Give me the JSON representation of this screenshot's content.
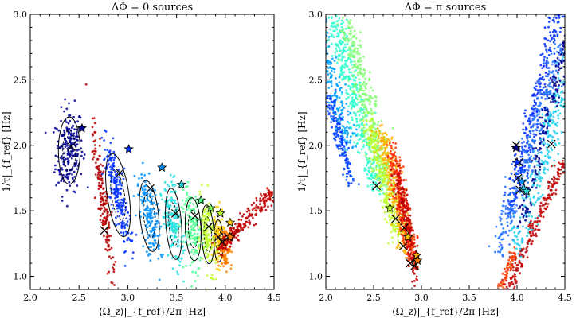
{
  "figure": {
    "description_free": true
  },
  "chart_data": [
    {
      "type": "scatter",
      "title": "ΔΦ = 0 sources",
      "xlabel": "⟨Ω_z⟩|_{f_ref}/2π [Hz]",
      "ylabel": "1/τ|_{f_ref} [Hz]",
      "xlim": [
        2.0,
        4.5
      ],
      "ylim": [
        0.9,
        3.0
      ],
      "xticks": [
        2.0,
        2.5,
        3.0,
        3.5,
        4.0,
        4.5
      ],
      "yticks": [
        1.0,
        1.5,
        2.0,
        2.5,
        3.0
      ],
      "xtick_labels": [
        "2.0",
        "2.5",
        "3.0",
        "3.5",
        "4.0",
        "4.5"
      ],
      "ytick_labels": [
        "1.0",
        "1.5",
        "2.0",
        "2.5",
        "3.0"
      ],
      "clusters": [
        {
          "color": "#00008f",
          "cx": 2.4,
          "cy": 1.96,
          "sx": 0.07,
          "sy": 0.16,
          "tilt": 0.0,
          "n": 220,
          "contour": true
        },
        {
          "color": "#b30000",
          "cx": 2.75,
          "cy": 1.55,
          "sx": 0.03,
          "sy": 0.28,
          "tilt": 2.6,
          "n": 180,
          "contour": false
        },
        {
          "color": "#0030ff",
          "cx": 2.9,
          "cy": 1.62,
          "sx": 0.07,
          "sy": 0.2,
          "tilt": 2.1,
          "n": 220,
          "contour": true
        },
        {
          "color": "#0090ff",
          "cx": 3.22,
          "cy": 1.46,
          "sx": 0.06,
          "sy": 0.17,
          "tilt": 2.4,
          "n": 180,
          "contour": true
        },
        {
          "color": "#20e0e0",
          "cx": 3.47,
          "cy": 1.4,
          "sx": 0.05,
          "sy": 0.17,
          "tilt": 2.6,
          "n": 170,
          "contour": true
        },
        {
          "color": "#50ff90",
          "cx": 3.67,
          "cy": 1.36,
          "sx": 0.05,
          "sy": 0.15,
          "tilt": 2.8,
          "n": 160,
          "contour": true
        },
        {
          "color": "#c0ff30",
          "cx": 3.82,
          "cy": 1.32,
          "sx": 0.04,
          "sy": 0.14,
          "tilt": 2.8,
          "n": 150,
          "contour": true
        },
        {
          "color": "#ffd000",
          "cx": 3.93,
          "cy": 1.27,
          "sx": 0.03,
          "sy": 0.1,
          "tilt": 3.0,
          "n": 120,
          "contour": true
        },
        {
          "color": "#ff8000",
          "cx": 4.0,
          "cy": 1.22,
          "sx": 0.03,
          "sy": 0.08,
          "tilt": 3.0,
          "n": 100,
          "contour": false
        },
        {
          "color": "#c00000",
          "cx": 4.22,
          "cy": 1.43,
          "sx": 0.2,
          "sy": 0.2,
          "tilt": 1.05,
          "n": 220,
          "line": true,
          "dx": 0.55,
          "dy": 0.45,
          "spread": 0.03
        }
      ],
      "crosses": [
        [
          2.42,
          1.99
        ],
        [
          2.76,
          1.35
        ],
        [
          2.92,
          1.79
        ],
        [
          3.23,
          1.67
        ],
        [
          3.49,
          1.48
        ],
        [
          3.69,
          1.46
        ],
        [
          3.83,
          1.38
        ],
        [
          3.93,
          1.3
        ],
        [
          3.97,
          1.26
        ],
        [
          4.03,
          1.3
        ]
      ],
      "stars": [
        {
          "x": 2.53,
          "y": 2.13,
          "color": "#00008f"
        },
        {
          "x": 3.01,
          "y": 1.97,
          "color": "#0030ff"
        },
        {
          "x": 3.35,
          "y": 1.83,
          "color": "#0090ff"
        },
        {
          "x": 3.55,
          "y": 1.7,
          "color": "#20e0e0"
        },
        {
          "x": 3.75,
          "y": 1.58,
          "color": "#50ff90"
        },
        {
          "x": 3.85,
          "y": 1.52,
          "color": "#80ff60"
        },
        {
          "x": 3.95,
          "y": 1.48,
          "color": "#c0ff30"
        },
        {
          "x": 4.05,
          "y": 1.41,
          "color": "#ffd000"
        },
        {
          "x": 4.05,
          "y": 1.3,
          "color": "#ff8000"
        }
      ]
    },
    {
      "type": "scatter",
      "title": "ΔΦ = π sources",
      "xlabel": "⟨Ω_z⟩|_{f_ref}/2π [Hz]",
      "ylabel": "1/τ|_{f_ref} [Hz]",
      "xlim": [
        2.0,
        4.5
      ],
      "ylim": [
        0.9,
        3.0
      ],
      "xticks": [
        2.0,
        2.5,
        3.0,
        3.5,
        4.0,
        4.5
      ],
      "yticks": [
        1.0,
        1.5,
        2.0,
        2.5,
        3.0
      ],
      "xtick_labels": [
        "2.0",
        "2.5",
        "3.0",
        "3.5",
        "4.0",
        "4.5"
      ],
      "ytick_labels": [
        "1.0",
        "1.5",
        "2.0",
        "2.5",
        "3.0"
      ],
      "clusters": [
        {
          "color": "#30ffd0",
          "line": true,
          "cx": 2.3,
          "cy": 2.35,
          "dx": 0.45,
          "dy": -1.3,
          "spread": 0.05,
          "n": 400
        },
        {
          "color": "#80ff70",
          "line": true,
          "cx": 2.45,
          "cy": 2.25,
          "dx": 0.45,
          "dy": -1.3,
          "spread": 0.05,
          "n": 350
        },
        {
          "color": "#c0ff30",
          "line": true,
          "cx": 2.6,
          "cy": 1.75,
          "dx": 0.3,
          "dy": -0.9,
          "spread": 0.04,
          "n": 250
        },
        {
          "color": "#ffb000",
          "line": true,
          "cx": 2.72,
          "cy": 1.65,
          "dx": 0.28,
          "dy": -0.9,
          "spread": 0.04,
          "n": 280
        },
        {
          "color": "#ff3000",
          "line": true,
          "cx": 2.8,
          "cy": 1.55,
          "dx": 0.25,
          "dy": -0.9,
          "spread": 0.035,
          "n": 280
        },
        {
          "color": "#c00000",
          "line": true,
          "cx": 2.85,
          "cy": 1.4,
          "dx": 0.2,
          "dy": -0.8,
          "spread": 0.03,
          "n": 200
        },
        {
          "color": "#00a0ff",
          "line": true,
          "cx": 2.05,
          "cy": 2.55,
          "dx": 0.4,
          "dy": -1.2,
          "spread": 0.04,
          "n": 250
        },
        {
          "color": "#0040ff",
          "line": true,
          "cx": 2.15,
          "cy": 2.05,
          "dx": 0.25,
          "dy": -0.7,
          "spread": 0.03,
          "n": 150
        },
        {
          "color": "#0030ff",
          "line": true,
          "cx": 4.22,
          "cy": 2.4,
          "dx": 0.6,
          "dy": 1.8,
          "spread": 0.04,
          "n": 300
        },
        {
          "color": "#2070ff",
          "line": true,
          "cx": 4.15,
          "cy": 2.0,
          "dx": 0.7,
          "dy": 1.6,
          "spread": 0.05,
          "n": 300
        },
        {
          "color": "#20d0f0",
          "line": true,
          "cx": 4.3,
          "cy": 1.95,
          "dx": 0.6,
          "dy": 1.5,
          "spread": 0.06,
          "n": 300
        },
        {
          "color": "#00008f",
          "line": true,
          "cx": 4.35,
          "cy": 2.3,
          "dx": 0.6,
          "dy": 1.8,
          "spread": 0.03,
          "n": 200
        },
        {
          "color": "#c00000",
          "line": true,
          "cx": 4.2,
          "cy": 1.4,
          "dx": 0.6,
          "dy": 1.0,
          "spread": 0.03,
          "n": 200
        },
        {
          "color": "#ff4000",
          "line": true,
          "cx": 3.9,
          "cy": 1.05,
          "dx": 0.15,
          "dy": 0.3,
          "spread": 0.02,
          "n": 60
        }
      ],
      "crosses": [
        [
          2.53,
          1.69
        ],
        [
          2.73,
          1.44
        ],
        [
          2.82,
          1.37
        ],
        [
          2.81,
          1.23
        ],
        [
          2.88,
          1.1
        ],
        [
          2.95,
          1.14
        ],
        [
          2.93,
          1.08
        ],
        [
          3.99,
          2.0
        ],
        [
          4.02,
          1.87
        ],
        [
          4.01,
          1.75
        ],
        [
          4.03,
          1.66
        ],
        [
          4.36,
          2.01
        ]
      ],
      "stars": [
        {
          "x": 2.67,
          "y": 1.52,
          "color": "#c0ff30"
        },
        {
          "x": 2.86,
          "y": 1.3,
          "color": "#ffd000"
        },
        {
          "x": 2.95,
          "y": 1.16,
          "color": "#ffb000"
        },
        {
          "x": 2.96,
          "y": 1.12,
          "color": "#ff8000"
        },
        {
          "x": 3.99,
          "y": 1.98,
          "color": "#00008f"
        },
        {
          "x": 4.0,
          "y": 1.87,
          "color": "#0030ff"
        },
        {
          "x": 4.05,
          "y": 1.72,
          "color": "#0090ff"
        },
        {
          "x": 4.07,
          "y": 1.67,
          "color": "#20d0f0"
        },
        {
          "x": 4.1,
          "y": 1.65,
          "color": "#30e0e0"
        }
      ]
    }
  ]
}
